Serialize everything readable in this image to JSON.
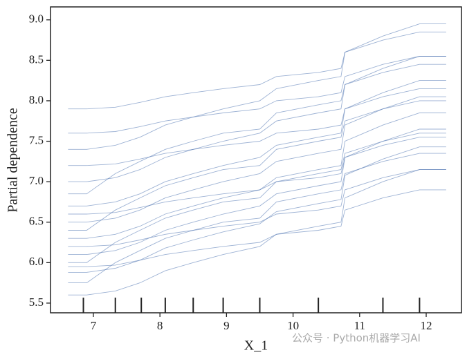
{
  "chart_data": {
    "type": "line",
    "x_label": "X_1",
    "y_label": "Partial dependence",
    "watermark": "公众号 · Python机器学习AI",
    "color": "#4c72b0",
    "x": [
      6.62,
      6.9,
      7.33,
      7.7,
      8.08,
      8.5,
      8.95,
      9.5,
      9.75,
      10.38,
      10.72,
      10.78,
      11.35,
      11.9,
      12.3
    ],
    "series": [
      {
        "values": [
          5.6,
          5.6,
          5.65,
          5.75,
          5.9,
          6.0,
          6.1,
          6.2,
          6.35,
          6.45,
          6.5,
          6.8,
          7.0,
          7.15,
          7.15
        ]
      },
      {
        "values": [
          5.75,
          5.75,
          6.0,
          6.15,
          6.3,
          6.4,
          6.5,
          6.55,
          6.75,
          6.85,
          6.9,
          7.1,
          7.25,
          7.35,
          7.35
        ]
      },
      {
        "values": [
          5.88,
          5.88,
          5.93,
          6.03,
          6.18,
          6.28,
          6.38,
          6.48,
          6.63,
          6.73,
          6.78,
          7.08,
          7.28,
          7.43,
          7.43
        ]
      },
      {
        "values": [
          5.95,
          5.95,
          5.97,
          6.03,
          6.1,
          6.15,
          6.2,
          6.25,
          6.35,
          6.4,
          6.45,
          6.65,
          6.8,
          6.9,
          6.9
        ]
      },
      {
        "values": [
          6.0,
          6.0,
          6.25,
          6.4,
          6.55,
          6.65,
          6.75,
          6.8,
          7.0,
          7.1,
          7.15,
          7.35,
          7.5,
          7.6,
          7.6
        ]
      },
      {
        "values": [
          6.1,
          6.1,
          6.15,
          6.25,
          6.4,
          6.5,
          6.6,
          6.7,
          6.85,
          6.95,
          7.0,
          7.3,
          7.5,
          7.65,
          7.65
        ]
      },
      {
        "values": [
          6.2,
          6.2,
          6.22,
          6.28,
          6.35,
          6.4,
          6.45,
          6.5,
          6.6,
          6.65,
          6.7,
          6.9,
          7.05,
          7.15,
          7.15
        ]
      },
      {
        "values": [
          6.3,
          6.3,
          6.35,
          6.45,
          6.6,
          6.7,
          6.8,
          6.9,
          7.05,
          7.15,
          7.2,
          7.5,
          7.7,
          7.85,
          7.85
        ]
      },
      {
        "values": [
          6.4,
          6.4,
          6.65,
          6.8,
          6.95,
          7.05,
          7.15,
          7.2,
          7.4,
          7.5,
          7.55,
          7.75,
          7.9,
          8.0,
          8.0
        ]
      },
      {
        "values": [
          6.5,
          6.5,
          6.55,
          6.65,
          6.8,
          6.9,
          7.0,
          7.1,
          7.25,
          7.35,
          7.4,
          7.7,
          7.9,
          8.05,
          8.05
        ]
      },
      {
        "values": [
          6.6,
          6.6,
          6.62,
          6.68,
          6.75,
          6.8,
          6.85,
          6.9,
          7.0,
          7.05,
          7.1,
          7.3,
          7.45,
          7.55,
          7.55
        ]
      },
      {
        "values": [
          6.7,
          6.7,
          6.75,
          6.85,
          7.0,
          7.1,
          7.2,
          7.3,
          7.45,
          7.55,
          7.6,
          7.9,
          8.1,
          8.25,
          8.25
        ]
      },
      {
        "values": [
          6.85,
          6.85,
          7.1,
          7.25,
          7.4,
          7.5,
          7.6,
          7.65,
          7.85,
          7.95,
          8.0,
          8.2,
          8.35,
          8.45,
          8.45
        ]
      },
      {
        "values": [
          7.0,
          7.0,
          7.05,
          7.15,
          7.3,
          7.4,
          7.5,
          7.6,
          7.75,
          7.85,
          7.9,
          8.2,
          8.4,
          8.55,
          8.55
        ]
      },
      {
        "values": [
          7.2,
          7.2,
          7.22,
          7.28,
          7.35,
          7.4,
          7.45,
          7.5,
          7.6,
          7.65,
          7.7,
          7.9,
          8.05,
          8.15,
          8.15
        ]
      },
      {
        "values": [
          7.4,
          7.4,
          7.45,
          7.55,
          7.7,
          7.8,
          7.9,
          8.0,
          8.15,
          8.25,
          8.3,
          8.6,
          8.8,
          8.95,
          8.95
        ]
      },
      {
        "values": [
          7.6,
          7.6,
          7.62,
          7.68,
          7.75,
          7.8,
          7.85,
          7.9,
          8.0,
          8.05,
          8.1,
          8.3,
          8.45,
          8.55,
          8.55
        ]
      },
      {
        "values": [
          7.9,
          7.9,
          7.92,
          7.98,
          8.05,
          8.1,
          8.15,
          8.2,
          8.3,
          8.35,
          8.4,
          8.6,
          8.75,
          8.85,
          8.85
        ]
      }
    ],
    "deciles": [
      6.85,
      7.33,
      7.72,
      8.08,
      8.5,
      8.95,
      9.5,
      10.38,
      11.35,
      11.9
    ],
    "xlim": [
      6.356,
      12.53
    ],
    "ylim": [
      5.38,
      9.16
    ],
    "xticks": [
      7,
      8,
      9,
      10,
      11,
      12
    ],
    "yticks": [
      5.5,
      {
        "value": 6,
        "label": "6.0"
      },
      6.5,
      {
        "value": 7,
        "label": "7.0"
      },
      7.5,
      {
        "value": 8,
        "label": "8.0"
      },
      8.5,
      {
        "value": 9,
        "label": "9.0"
      }
    ]
  }
}
